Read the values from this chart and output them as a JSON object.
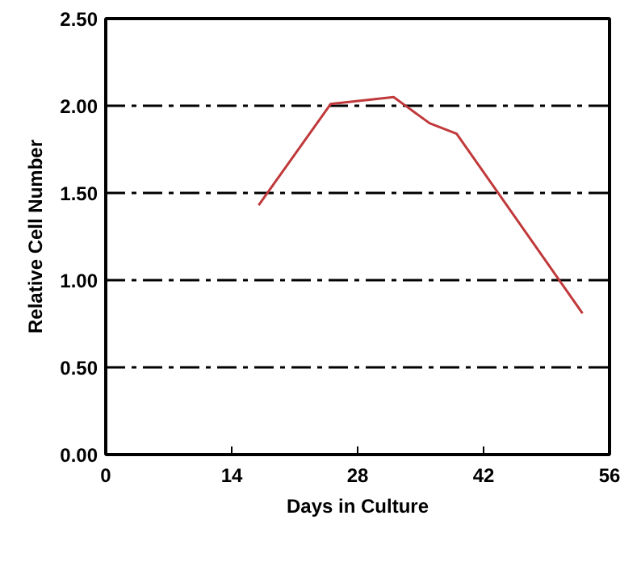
{
  "chart_data": {
    "type": "line",
    "xlabel": "Days in Culture",
    "ylabel": "Relative Cell Number",
    "x": [
      17,
      25,
      32,
      36,
      39,
      53
    ],
    "series": [
      {
        "color": "#c0393b",
        "values": [
          1.43,
          2.01,
          2.05,
          1.9,
          1.84,
          0.81
        ]
      }
    ],
    "xlim": [
      0,
      56
    ],
    "xticks": [
      0,
      14,
      28,
      42,
      56
    ],
    "ylim": [
      0,
      2.5
    ],
    "yticks": [
      {
        "value": 0,
        "label": "0.00"
      },
      {
        "value": 0.5,
        "label": "0.50"
      },
      {
        "value": 1,
        "label": "1.00"
      },
      {
        "value": 1.5,
        "label": "1.50"
      },
      {
        "value": 2,
        "label": "2.00"
      },
      {
        "value": 2.5,
        "label": "2.50"
      }
    ],
    "grid": "y",
    "marker": "none",
    "line_style": "solid"
  }
}
